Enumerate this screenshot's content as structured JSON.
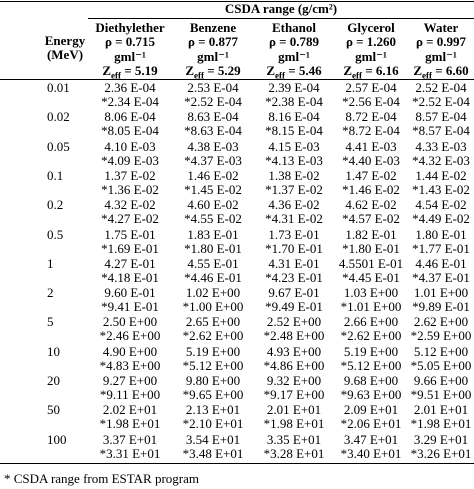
{
  "header": {
    "title": "CSDA range (g/cm²)",
    "row_label": "Energy (MeV)",
    "density_unit": "gml⁻¹",
    "z_symbol": "Z",
    "z_sub": "eff"
  },
  "columns": [
    {
      "name": "Diethylether",
      "density": "ρ = 0.715",
      "zeff": " = 5.19"
    },
    {
      "name": "Benzene",
      "density": "ρ = 0.877",
      "zeff": " = 5.29"
    },
    {
      "name": "Ethanol",
      "density": "ρ = 0.789",
      "zeff": " = 5.46"
    },
    {
      "name": "Glycerol",
      "density": "ρ = 1.260",
      "zeff": " = 6.16"
    },
    {
      "name": "Water",
      "density": "ρ = 0.997",
      "zeff": " = 6.60"
    }
  ],
  "table": {
    "rows": [
      {
        "energy": "0.01",
        "cells": [
          [
            "2.36 E-04",
            "*2.34 E-04"
          ],
          [
            "2.53 E-04",
            "*2.52 E-04"
          ],
          [
            "2.39 E-04",
            "*2.38 E-04"
          ],
          [
            "2.57 E-04",
            "*2.56 E-04"
          ],
          [
            "2.52 E-04",
            "*2.52 E-04"
          ]
        ]
      },
      {
        "energy": "0.02",
        "cells": [
          [
            "8.06 E-04",
            "*8.05 E-04"
          ],
          [
            "8.63 E-04",
            "*8.63 E-04"
          ],
          [
            "8.16 E-04",
            "*8.15 E-04"
          ],
          [
            "8.72 E-04",
            "*8.72 E-04"
          ],
          [
            "8.57 E-04",
            "*8.57 E-04"
          ]
        ]
      },
      {
        "energy": "0.05",
        "cells": [
          [
            "4.10 E-03",
            "*4.09 E-03"
          ],
          [
            "4.38 E-03",
            "*4.37 E-03"
          ],
          [
            "4.15 E-03",
            "*4.13 E-03"
          ],
          [
            "4.41 E-03",
            "*4.40 E-03"
          ],
          [
            "4.33 E-03",
            "*4.32 E-03"
          ]
        ]
      },
      {
        "energy": "0.1",
        "cells": [
          [
            "1.37 E-02",
            "*1.36 E-02"
          ],
          [
            "1.46 E-02",
            "*1.45 E-02"
          ],
          [
            "1.38 E-02",
            "*1.37 E-02"
          ],
          [
            "1.47 E-02",
            "*1.46 E-02"
          ],
          [
            "1.44 E-02",
            "*1.43 E-02"
          ]
        ]
      },
      {
        "energy": "0.2",
        "cells": [
          [
            "4.32 E-02",
            "*4.27 E-02"
          ],
          [
            "4.60 E-02",
            "*4.55 E-02"
          ],
          [
            "4.36 E-02",
            "*4.31 E-02"
          ],
          [
            "4.62 E-02",
            "*4.57 E-02"
          ],
          [
            "4.54 E-02",
            "*4.49 E-02"
          ]
        ]
      },
      {
        "energy": "0.5",
        "cells": [
          [
            "1.75 E-01",
            "*1.69 E-01"
          ],
          [
            "1.83 E-01",
            "*1.80 E-01"
          ],
          [
            "1.73 E-01",
            "*1.70 E-01"
          ],
          [
            "1.82 E-01",
            "*1.80 E-01"
          ],
          [
            "1.80 E-01",
            "*1.77 E-01"
          ]
        ]
      },
      {
        "energy": "1",
        "cells": [
          [
            "4.27 E-01",
            "*4.18 E-01"
          ],
          [
            "4.55 E-01",
            "*4.46 E-01"
          ],
          [
            "4.31 E-01",
            "*4.23 E-01"
          ],
          [
            "4.5501 E-01",
            "*4.45 E-01"
          ],
          [
            "4.46 E-01",
            "*4.37 E-01"
          ]
        ]
      },
      {
        "energy": "2",
        "cells": [
          [
            "9.60 E-01",
            "*9.41 E-01"
          ],
          [
            "1.02 E+00",
            "*1.00 E+00"
          ],
          [
            "9.67 E-01",
            "*9.49 E-01"
          ],
          [
            "1.03 E+00",
            "*1.01 E+00"
          ],
          [
            "1.01 E+00",
            "*9.89 E-01"
          ]
        ]
      },
      {
        "energy": "5",
        "cells": [
          [
            "2.50 E+00",
            "*2.46 E+00"
          ],
          [
            "2.65 E+00",
            "*2.62 E+00"
          ],
          [
            "2.52 E+00",
            "*2.48 E+00"
          ],
          [
            "2.66 E+00",
            "*2.62 E+00"
          ],
          [
            "2.62 E+00",
            "*2.59 E+00"
          ]
        ]
      },
      {
        "energy": "10",
        "cells": [
          [
            "4.90 E+00",
            "*4.83 E+00"
          ],
          [
            "5.19 E+00",
            "*5.12 E+00"
          ],
          [
            "4.93 E+00",
            "*4.86 E+00"
          ],
          [
            "5.19 E+00",
            "*5.12 E+00"
          ],
          [
            "5.12 E+00",
            "*5.05 E+00"
          ]
        ]
      },
      {
        "energy": "20",
        "cells": [
          [
            "9.27 E+00",
            "*9.11 E+00"
          ],
          [
            "9.80 E+00",
            "*9.65 E+00"
          ],
          [
            "9.32 E+00",
            "*9.17 E+00"
          ],
          [
            "9.68 E+00",
            "*9.63 E+00"
          ],
          [
            "9.66 E+00",
            "*9.51 E+00"
          ]
        ]
      },
      {
        "energy": "50",
        "cells": [
          [
            "2.02 E+01",
            "*1.98 E+01"
          ],
          [
            "2.13 E+01",
            "*2.10 E+01"
          ],
          [
            "2.01 E+01",
            "*1.98 E+01"
          ],
          [
            "2.09 E+01",
            "*2.06 E+01"
          ],
          [
            "2.01 E+01",
            "*1.98 E+01"
          ]
        ]
      },
      {
        "energy": "100",
        "cells": [
          [
            "3.37 E+01",
            "*3.31 E+01"
          ],
          [
            "3.54 E+01",
            "*3.48 E+01"
          ],
          [
            "3.35 E+01",
            "*3.28 E+01"
          ],
          [
            "3.47 E+01",
            "*3.40 E+01"
          ],
          [
            "3.29 E+01",
            "*3.26 E+01"
          ]
        ]
      }
    ]
  },
  "footnote": "* CSDA range from ESTAR program"
}
